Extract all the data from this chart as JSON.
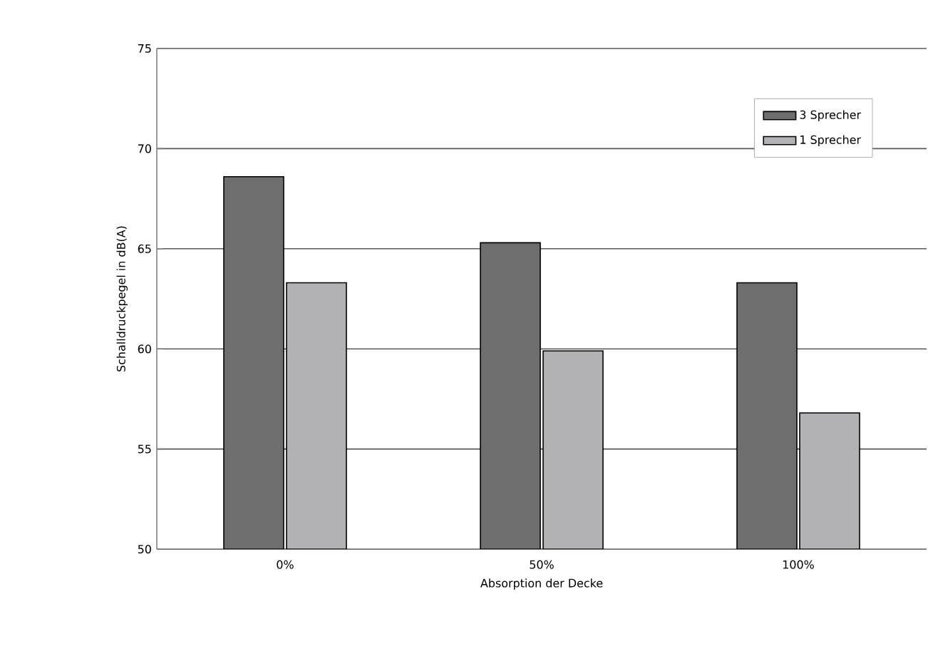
{
  "chart_data": {
    "type": "bar",
    "xlabel": "Absorption der Decke",
    "ylabel": "Schalldruckpegel in dB(A)",
    "categories": [
      "0%",
      "50%",
      "100%"
    ],
    "series": [
      {
        "name": "3 Sprecher",
        "color": "#6e6e6e",
        "values": [
          68.6,
          65.3,
          63.3
        ]
      },
      {
        "name": "1 Sprecher",
        "color": "#b2b2b4",
        "values": [
          63.3,
          59.9,
          56.8
        ]
      }
    ],
    "ylim": [
      50,
      75
    ],
    "yticks": [
      50,
      55,
      60,
      65,
      70,
      75
    ],
    "grid": "y",
    "legend": "top right"
  }
}
